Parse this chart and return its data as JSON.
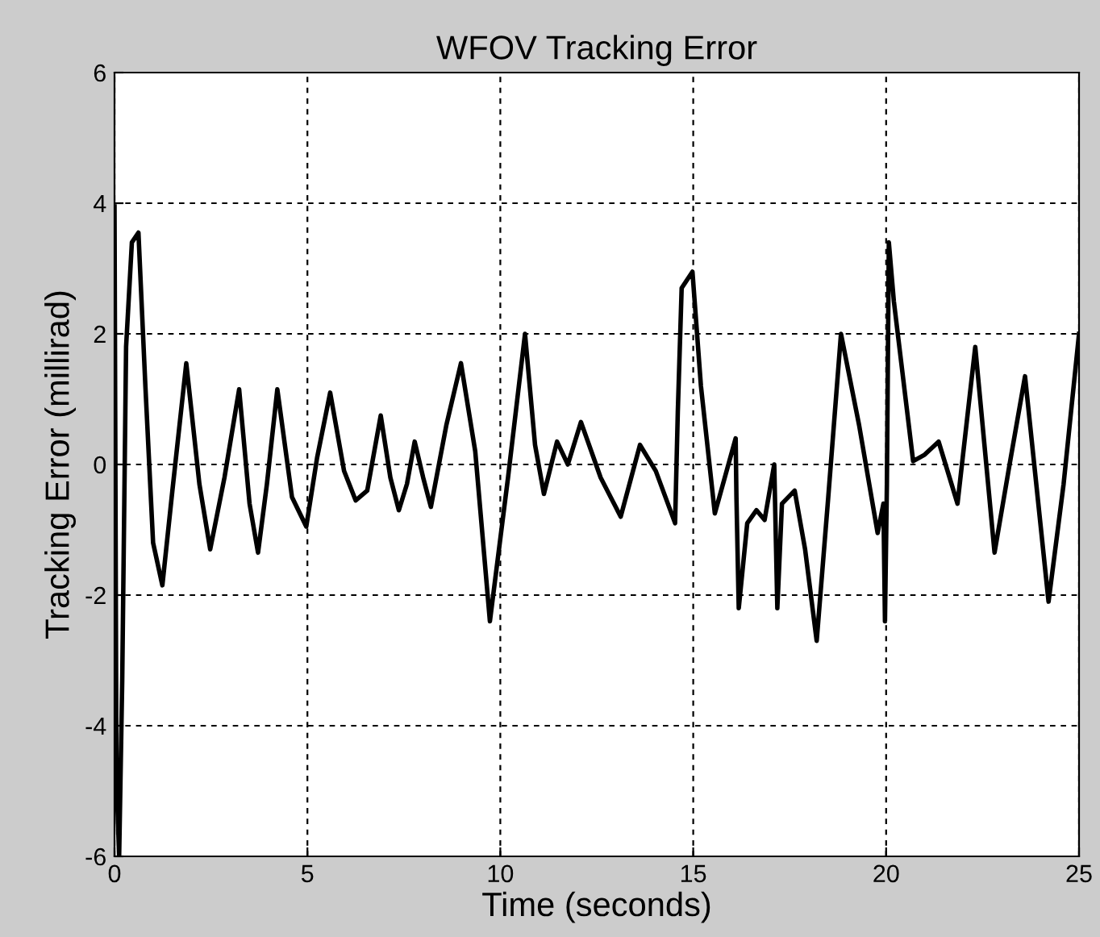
{
  "chart_data": {
    "type": "line",
    "title": "WFOV Tracking Error",
    "xlabel": "Time (seconds)",
    "ylabel": "Tracking Error (millirad)",
    "xlim": [
      0,
      25
    ],
    "ylim": [
      -6,
      6
    ],
    "xticks": [
      0,
      5,
      10,
      15,
      20,
      25
    ],
    "yticks": [
      -6,
      -4,
      -2,
      0,
      2,
      4,
      6
    ],
    "grid": true,
    "line_style": "solid",
    "marker": "none",
    "series": [
      {
        "color": "#000000",
        "x": [
          0,
          0.05,
          0.12,
          0.2,
          0.3,
          0.45,
          0.62,
          0.8,
          1.0,
          1.24,
          1.5,
          1.86,
          2.2,
          2.48,
          2.85,
          3.23,
          3.5,
          3.72,
          3.95,
          4.22,
          4.6,
          4.97,
          5.25,
          5.59,
          5.95,
          6.25,
          6.55,
          6.9,
          7.15,
          7.37,
          7.58,
          7.78,
          8.0,
          8.2,
          8.6,
          8.98,
          9.35,
          9.73,
          10.2,
          10.64,
          10.9,
          11.13,
          11.47,
          11.75,
          12.09,
          12.6,
          13.12,
          13.62,
          14.03,
          14.53,
          14.6,
          14.7,
          14.98,
          15.2,
          15.56,
          16.1,
          16.12,
          16.18,
          16.4,
          16.64,
          16.85,
          17.1,
          17.18,
          17.3,
          17.63,
          17.9,
          18.2,
          18.5,
          18.83,
          19.3,
          19.78,
          19.93,
          19.97,
          20.02,
          20.07,
          20.2,
          20.7,
          21.0,
          21.36,
          21.85,
          22.31,
          22.81,
          23.2,
          23.6,
          24.21,
          24.6,
          25.0
        ],
        "values": [
          3.95,
          -4.8,
          -6,
          -3.3,
          1.8,
          3.4,
          3.55,
          1.2,
          -1.2,
          -1.85,
          -0.4,
          1.55,
          -0.3,
          -1.3,
          -0.2,
          1.15,
          -0.6,
          -1.35,
          -0.3,
          1.15,
          -0.5,
          -0.95,
          0.1,
          1.1,
          -0.1,
          -0.55,
          -0.4,
          0.75,
          -0.2,
          -0.7,
          -0.3,
          0.35,
          -0.2,
          -0.65,
          0.6,
          1.55,
          0.2,
          -2.4,
          -0.2,
          2.0,
          0.3,
          -0.45,
          0.35,
          0.0,
          0.65,
          -0.2,
          -0.8,
          0.3,
          -0.1,
          -0.9,
          0.8,
          2.7,
          2.95,
          1.2,
          -0.75,
          0.4,
          -0.5,
          -2.2,
          -0.9,
          -0.7,
          -0.85,
          0.0,
          -2.2,
          -0.6,
          -0.4,
          -1.3,
          -2.7,
          -0.5,
          2.0,
          0.6,
          -1.05,
          -0.6,
          -2.4,
          -0.3,
          3.4,
          2.5,
          0.05,
          0.15,
          0.35,
          -0.6,
          1.8,
          -1.35,
          0.0,
          1.35,
          -2.1,
          -0.3,
          2.0
        ]
      }
    ]
  }
}
